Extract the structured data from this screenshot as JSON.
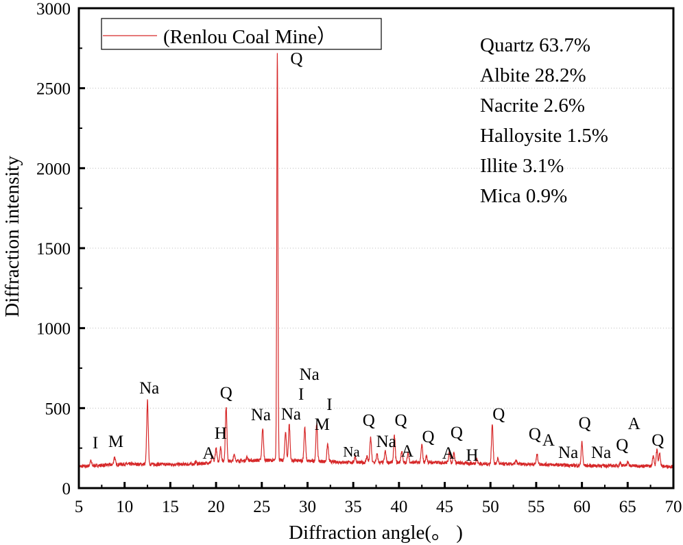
{
  "chart_data": {
    "type": "line",
    "xlabel": "Diffraction angle(。 )",
    "ylabel": "Diffraction intensity",
    "xlim": [
      5,
      70
    ],
    "ylim": [
      0,
      3000
    ],
    "xticks": [
      5,
      10,
      15,
      20,
      25,
      30,
      35,
      40,
      45,
      50,
      55,
      60,
      65,
      70
    ],
    "yticks": [
      0,
      500,
      1000,
      1500,
      2000,
      2500,
      3000
    ],
    "grid": "horizontal dotted",
    "legend": {
      "placement": "top-left",
      "entries": [
        "(Renlou Coal Mine）"
      ]
    },
    "series": [
      {
        "name": "(Renlou Coal Mine）",
        "color": "#d62728",
        "baseline": [
          [
            5,
            135
          ],
          [
            10,
            150
          ],
          [
            15,
            148
          ],
          [
            18,
            150
          ],
          [
            20,
            165
          ],
          [
            25,
            175
          ],
          [
            30,
            170
          ],
          [
            35,
            160
          ],
          [
            40,
            160
          ],
          [
            45,
            160
          ],
          [
            50,
            150
          ],
          [
            55,
            150
          ],
          [
            60,
            140
          ],
          [
            65,
            140
          ],
          [
            70,
            135
          ]
        ],
        "peaks": [
          [
            6.3,
            170
          ],
          [
            8.9,
            195
          ],
          [
            12.5,
            545
          ],
          [
            17.8,
            165
          ],
          [
            19.6,
            195
          ],
          [
            20.0,
            250
          ],
          [
            20.5,
            255
          ],
          [
            21.1,
            510
          ],
          [
            22.0,
            210
          ],
          [
            23.4,
            195
          ],
          [
            25.1,
            375
          ],
          [
            26.7,
            2730
          ],
          [
            27.6,
            355
          ],
          [
            28.0,
            400
          ],
          [
            29.7,
            380
          ],
          [
            31.0,
            405
          ],
          [
            32.2,
            275
          ],
          [
            35.2,
            200
          ],
          [
            36.5,
            200
          ],
          [
            36.9,
            315
          ],
          [
            37.6,
            210
          ],
          [
            38.5,
            230
          ],
          [
            39.5,
            325
          ],
          [
            40.3,
            230
          ],
          [
            41.0,
            220
          ],
          [
            42.5,
            270
          ],
          [
            43.0,
            200
          ],
          [
            45.5,
            225
          ],
          [
            46.0,
            220
          ],
          [
            48.5,
            180
          ],
          [
            50.2,
            400
          ],
          [
            50.8,
            185
          ],
          [
            52.8,
            170
          ],
          [
            55.1,
            210
          ],
          [
            60.0,
            285
          ],
          [
            64.2,
            160
          ],
          [
            65.0,
            165
          ],
          [
            67.8,
            205
          ],
          [
            68.2,
            240
          ],
          [
            68.5,
            215
          ]
        ]
      }
    ],
    "annotations": [
      {
        "text": "I",
        "x": 6.8,
        "y": 287
      },
      {
        "text": "M",
        "x": 9.05,
        "y": 296
      },
      {
        "text": "Na",
        "x": 12.7,
        "y": 630
      },
      {
        "text": "A",
        "x": 19.2,
        "y": 223
      },
      {
        "text": "H",
        "x": 20.5,
        "y": 309
      },
      {
        "text": "Q",
        "x": 21.1,
        "y": 600
      },
      {
        "text": "Na",
        "x": 24.9,
        "y": 463
      },
      {
        "text": "Q",
        "x": 28.8,
        "y": 2690
      },
      {
        "text": "Na",
        "x": 28.2,
        "y": 467
      },
      {
        "text": "I",
        "x": 29.3,
        "y": 437
      },
      {
        "text": "Na",
        "x": 30.2,
        "y": 446
      },
      {
        "text": "M",
        "x": 31.6,
        "y": 403
      },
      {
        "text": "I",
        "x": 32.4,
        "y": 309
      },
      {
        "text": "Na",
        "x": 34.8,
        "y": 236,
        "small": true
      },
      {
        "text": "Q",
        "x": 36.7,
        "y": 429
      },
      {
        "text": "Na",
        "x": 38.6,
        "y": 296
      },
      {
        "text": "Q",
        "x": 40.2,
        "y": 403
      },
      {
        "text": "A",
        "x": 40.9,
        "y": 236
      },
      {
        "text": "Q",
        "x": 43.2,
        "y": 326
      },
      {
        "text": "A",
        "x": 45.4,
        "y": 223
      },
      {
        "text": "Q",
        "x": 46.3,
        "y": 326
      },
      {
        "text": "H",
        "x": 48.0,
        "y": 210
      },
      {
        "text": "Q",
        "x": 50.9,
        "y": 467
      },
      {
        "text": "Q",
        "x": 54.85,
        "y": 343
      },
      {
        "text": "A",
        "x": 56.35,
        "y": 304
      },
      {
        "text": "Na",
        "x": 58.5,
        "y": 227
      },
      {
        "text": "Q",
        "x": 60.3,
        "y": 411
      },
      {
        "text": "Na",
        "x": 62.1,
        "y": 227
      },
      {
        "text": "Q",
        "x": 64.4,
        "y": 274
      },
      {
        "text": "A",
        "x": 65.7,
        "y": 201
      },
      {
        "text": "Q",
        "x": 68.3,
        "y": 304
      }
    ],
    "composition": [
      "Quartz 63.7%",
      "Albite 28.2%",
      "Nacrite 2.6%",
      "Halloysite 1.5%",
      "Illite 3.1%",
      "Mica 0.9%"
    ]
  }
}
